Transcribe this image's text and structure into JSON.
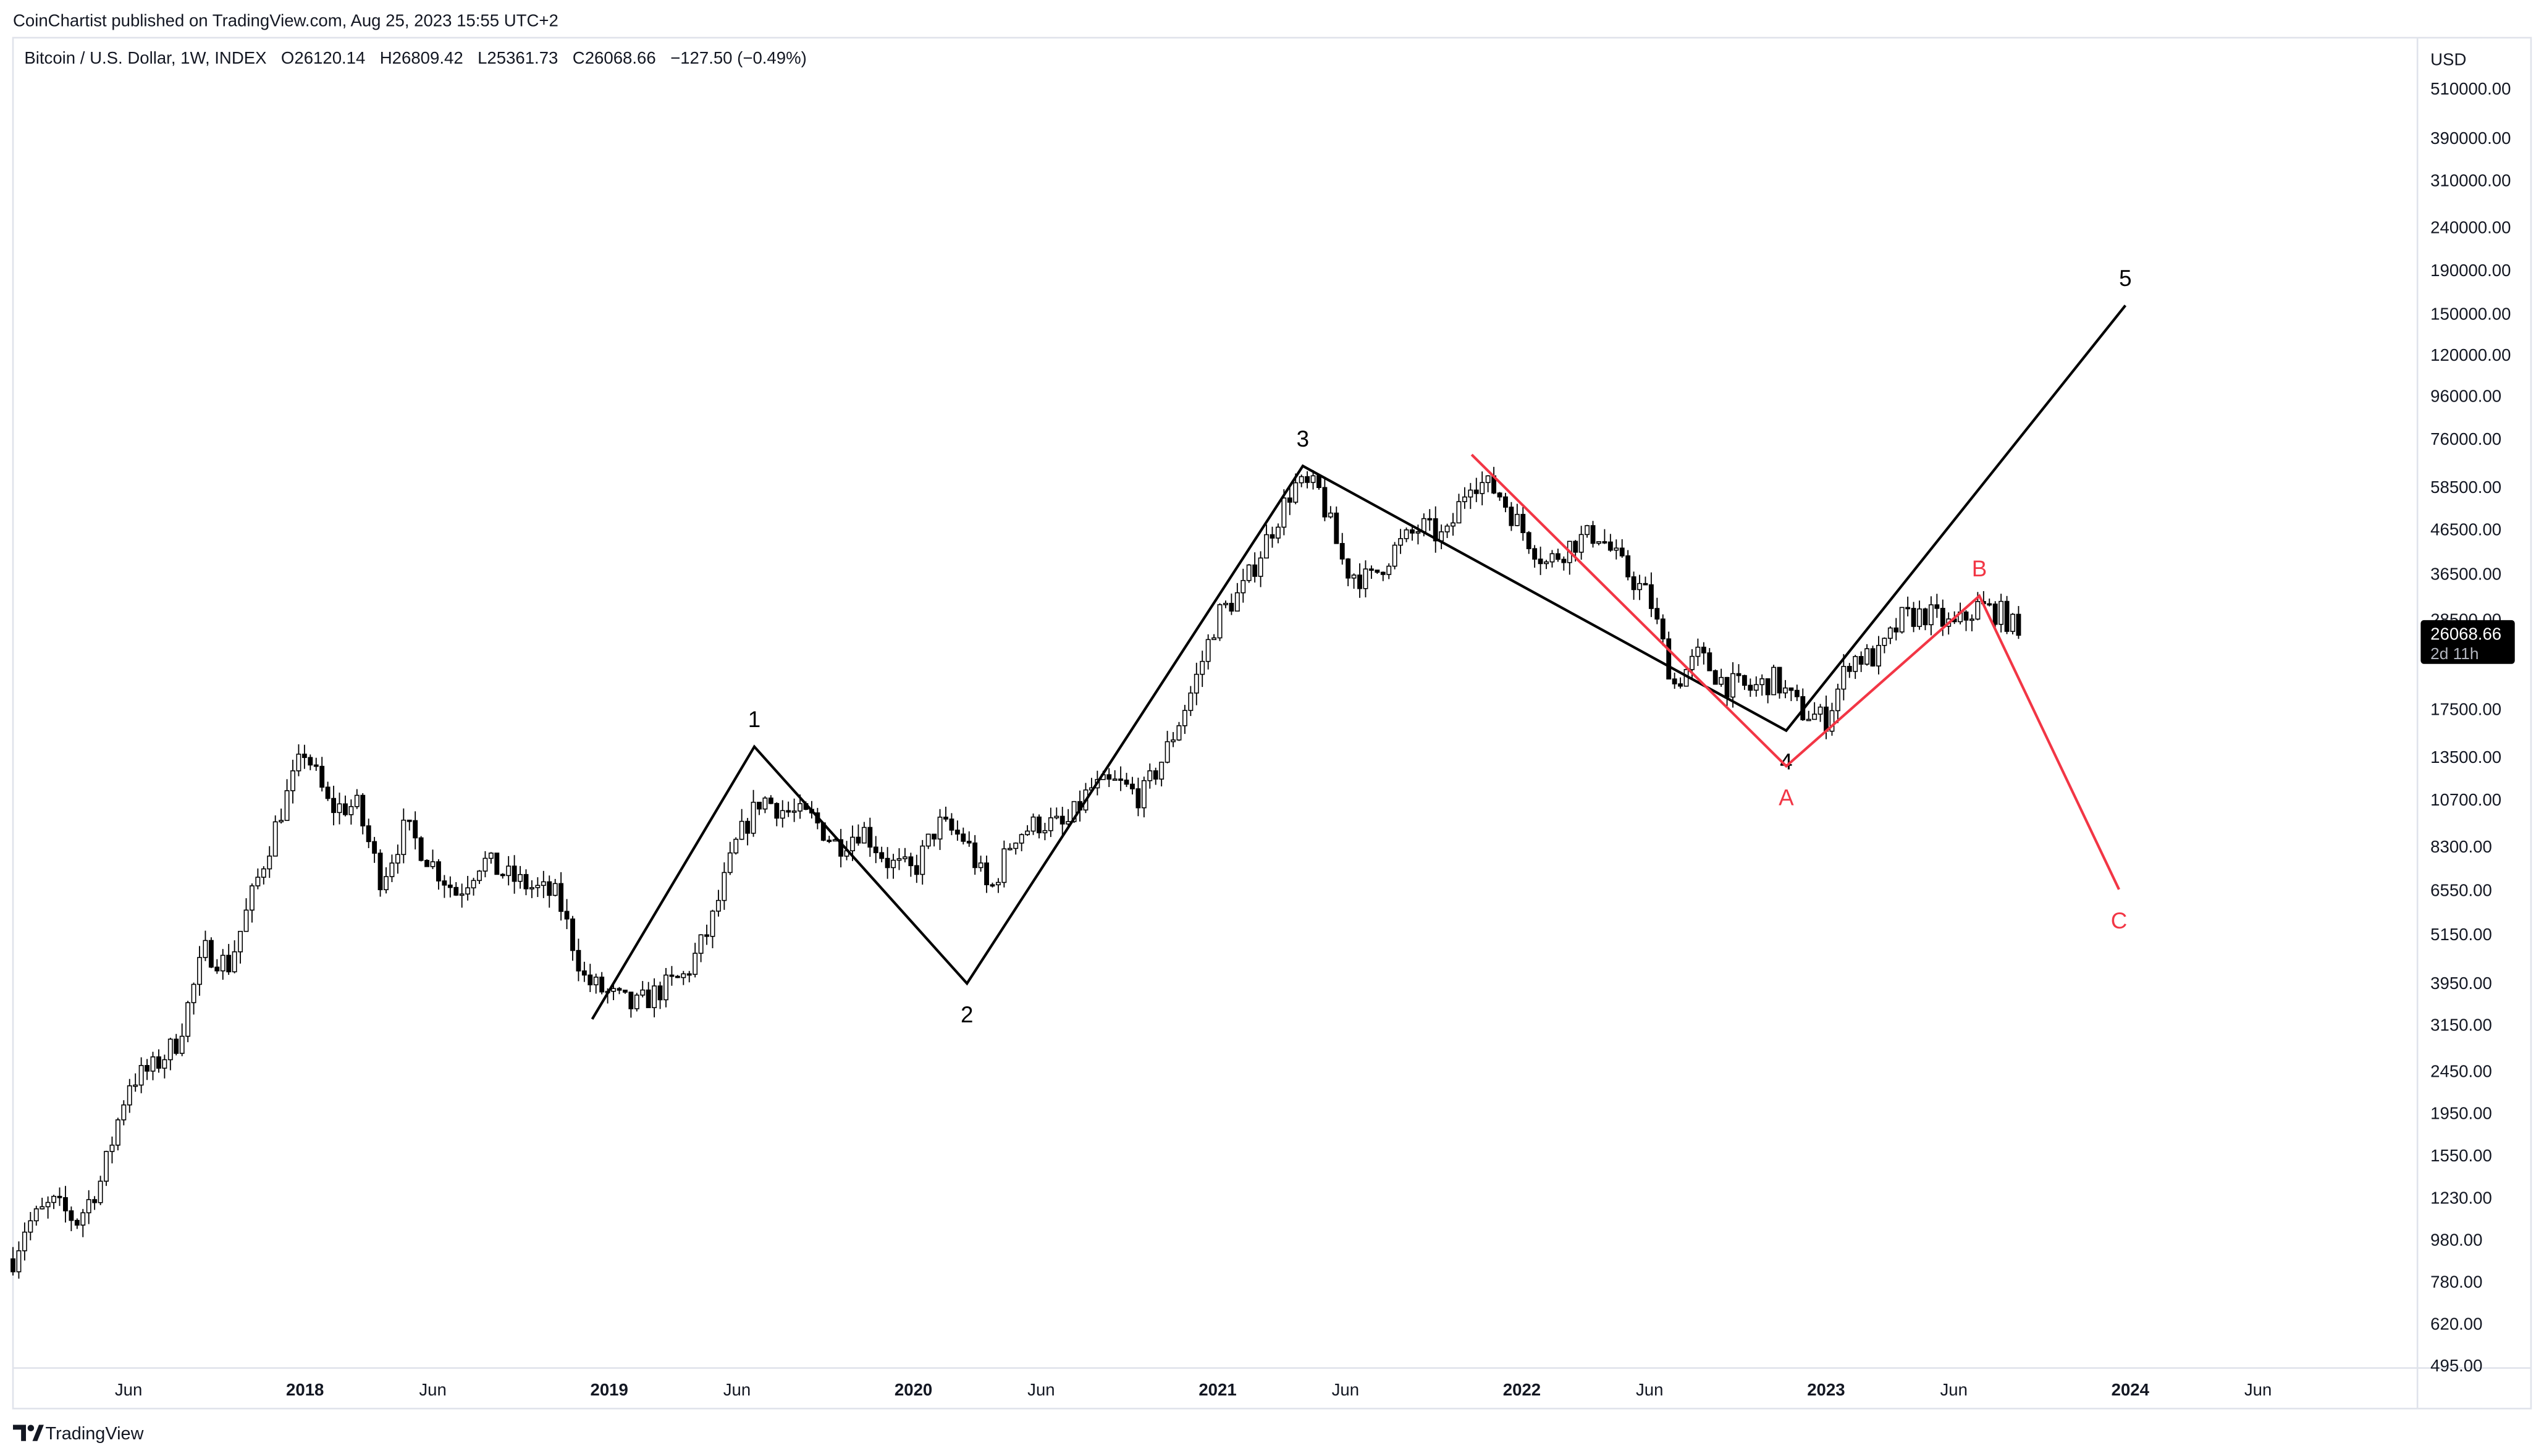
{
  "header": {
    "published": "CoinChartist published on TradingView.com, Aug 25, 2023 15:55 UTC+2",
    "symbol": "Bitcoin / U.S. Dollar, 1W, INDEX",
    "open": "O26120.14",
    "high": "H26809.42",
    "low": "L25361.73",
    "close": "C26068.66",
    "change": "−127.50 (−0.49%)"
  },
  "price_axis": {
    "currency": "USD",
    "labels": [
      "510000.00",
      "390000.00",
      "310000.00",
      "240000.00",
      "190000.00",
      "150000.00",
      "120000.00",
      "96000.00",
      "76000.00",
      "58500.00",
      "46500.00",
      "36500.00",
      "28500.00",
      "17500.00",
      "13500.00",
      "10700.00",
      "8300.00",
      "6550.00",
      "5150.00",
      "3950.00",
      "3150.00",
      "2450.00",
      "1950.00",
      "1550.00",
      "1230.00",
      "980.00",
      "780.00",
      "620.00",
      "495.00"
    ],
    "last_price": "26068.66",
    "countdown": "2d 11h"
  },
  "time_axis": {
    "labels": [
      {
        "text": "Jun",
        "t": 2017.42,
        "year": false
      },
      {
        "text": "2018",
        "t": 2018.0,
        "year": true
      },
      {
        "text": "Jun",
        "t": 2018.42,
        "year": false
      },
      {
        "text": "2019",
        "t": 2019.0,
        "year": true
      },
      {
        "text": "Jun",
        "t": 2019.42,
        "year": false
      },
      {
        "text": "2020",
        "t": 2020.0,
        "year": true
      },
      {
        "text": "Jun",
        "t": 2020.42,
        "year": false
      },
      {
        "text": "2021",
        "t": 2021.0,
        "year": true
      },
      {
        "text": "Jun",
        "t": 2021.42,
        "year": false
      },
      {
        "text": "2022",
        "t": 2022.0,
        "year": true
      },
      {
        "text": "Jun",
        "t": 2022.42,
        "year": false
      },
      {
        "text": "2023",
        "t": 2023.0,
        "year": true
      },
      {
        "text": "Jun",
        "t": 2023.42,
        "year": false
      },
      {
        "text": "2024",
        "t": 2024.0,
        "year": true
      },
      {
        "text": "Jun",
        "t": 2024.42,
        "year": false
      }
    ]
  },
  "footer": {
    "logo_text": "TradingView"
  },
  "colors": {
    "up": "#ffffff",
    "down": "#000000",
    "wick": "#000000",
    "wave_black": "#000000",
    "wave_red": "#f23645"
  },
  "chart_data": {
    "type": "candlestick",
    "title": "Bitcoin / U.S. Dollar, 1W, INDEX",
    "scale": "log",
    "ylim": [
      495,
      510000
    ],
    "xlim": [
      "2017-01",
      "2024-09"
    ],
    "grid": false,
    "monthly_closes": {
      "dates": [
        2017.04,
        2017.08,
        2017.17,
        2017.25,
        2017.33,
        2017.42,
        2017.5,
        2017.58,
        2017.67,
        2017.75,
        2017.83,
        2017.92,
        2018.0,
        2018.08,
        2018.17,
        2018.25,
        2018.33,
        2018.42,
        2018.5,
        2018.58,
        2018.67,
        2018.75,
        2018.83,
        2018.92,
        2019.0,
        2019.08,
        2019.17,
        2019.25,
        2019.33,
        2019.42,
        2019.5,
        2019.58,
        2019.67,
        2019.75,
        2019.83,
        2019.92,
        2020.0,
        2020.08,
        2020.17,
        2020.25,
        2020.33,
        2020.42,
        2020.5,
        2020.58,
        2020.67,
        2020.75,
        2020.83,
        2020.92,
        2021.0,
        2021.08,
        2021.17,
        2021.25,
        2021.33,
        2021.42,
        2021.5,
        2021.58,
        2021.67,
        2021.75,
        2021.83,
        2021.92,
        2022.0,
        2022.08,
        2022.17,
        2022.25,
        2022.33,
        2022.42,
        2022.5,
        2022.58,
        2022.67,
        2022.75,
        2022.83,
        2022.92,
        2023.0,
        2023.08,
        2023.17,
        2023.25,
        2023.33,
        2023.42,
        2023.5,
        2023.58,
        2023.64
      ],
      "values": [
        880,
        1050,
        1190,
        1080,
        1350,
        2300,
        2480,
        2870,
        4700,
        4340,
        6450,
        10000,
        14000,
        10200,
        10300,
        6900,
        9200,
        7500,
        6400,
        7700,
        7000,
        6600,
        6300,
        4000,
        3700,
        3450,
        3800,
        4100,
        5300,
        8500,
        10800,
        10000,
        9600,
        8300,
        9150,
        7550,
        7200,
        9350,
        8600,
        6400,
        8800,
        9450,
        9150,
        11300,
        11650,
        10800,
        13800,
        19700,
        29000,
        33100,
        45200,
        58800,
        57700,
        37300,
        35000,
        41500,
        47100,
        43800,
        61300,
        57000,
        46300,
        38500,
        43200,
        45500,
        37700,
        31800,
        19900,
        23300,
        20000,
        19400,
        20500,
        17200,
        16500,
        23100,
        23100,
        28500,
        29300,
        27200,
        30500,
        29200,
        26068.66
      ]
    },
    "wave_count": {
      "impulse": [
        {
          "label": "",
          "t": 2018.944,
          "price": 3238
        },
        {
          "label": "1",
          "t": 2019.477,
          "price": 14230
        },
        {
          "label": "2",
          "t": 2020.176,
          "price": 3930
        },
        {
          "label": "3",
          "t": 2021.28,
          "price": 65400
        },
        {
          "label": "4",
          "t": 2022.869,
          "price": 15530
        },
        {
          "label": "5",
          "t": 2023.984,
          "price": 156500
        }
      ],
      "corrective": [
        {
          "label": "",
          "t": 2021.835,
          "price": 69560
        },
        {
          "label": "A",
          "t": 2022.869,
          "price": 12800
        },
        {
          "label": "B",
          "t": 2023.504,
          "price": 32280
        },
        {
          "label": "C",
          "t": 2023.963,
          "price": 6550
        }
      ]
    }
  }
}
